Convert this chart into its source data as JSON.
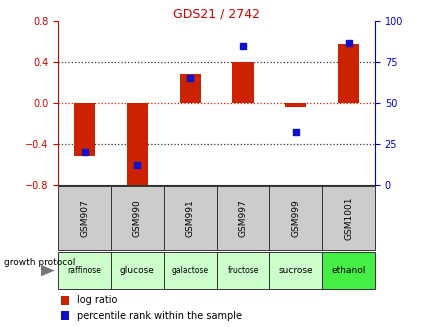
{
  "title": "GDS21 / 2742",
  "samples": [
    "GSM907",
    "GSM990",
    "GSM991",
    "GSM997",
    "GSM999",
    "GSM1001"
  ],
  "protocols": [
    "raffinose",
    "glucose",
    "galactose",
    "fructose",
    "sucrose",
    "ethanol"
  ],
  "log_ratios": [
    -0.52,
    -0.82,
    0.28,
    0.4,
    -0.04,
    0.58
  ],
  "percentile_ranks": [
    20,
    12,
    65,
    85,
    32,
    87
  ],
  "ylim_left": [
    -0.8,
    0.8
  ],
  "ylim_right": [
    0,
    100
  ],
  "yticks_left": [
    -0.8,
    -0.4,
    0.0,
    0.4,
    0.8
  ],
  "yticks_right": [
    0,
    25,
    50,
    75,
    100
  ],
  "bar_color": "#cc2200",
  "dot_color": "#1111cc",
  "zero_line_color": "#cc2200",
  "plot_bg": "#ffffff",
  "sample_bg": "#cccccc",
  "protocol_colors": [
    "#ccffcc",
    "#ccffcc",
    "#ccffcc",
    "#ccffcc",
    "#ccffcc",
    "#44ee44"
  ],
  "legend_log_ratio": "log ratio",
  "legend_percentile": "percentile rank within the sample",
  "growth_protocol_label": "growth protocol",
  "title_color": "#cc0000",
  "left_axis_color": "#cc0000",
  "right_axis_color": "#0000cc",
  "bar_width": 0.4,
  "dot_size": 20,
  "hline_color": "#333333",
  "hline_style": ":",
  "hline_lw": 0.9
}
